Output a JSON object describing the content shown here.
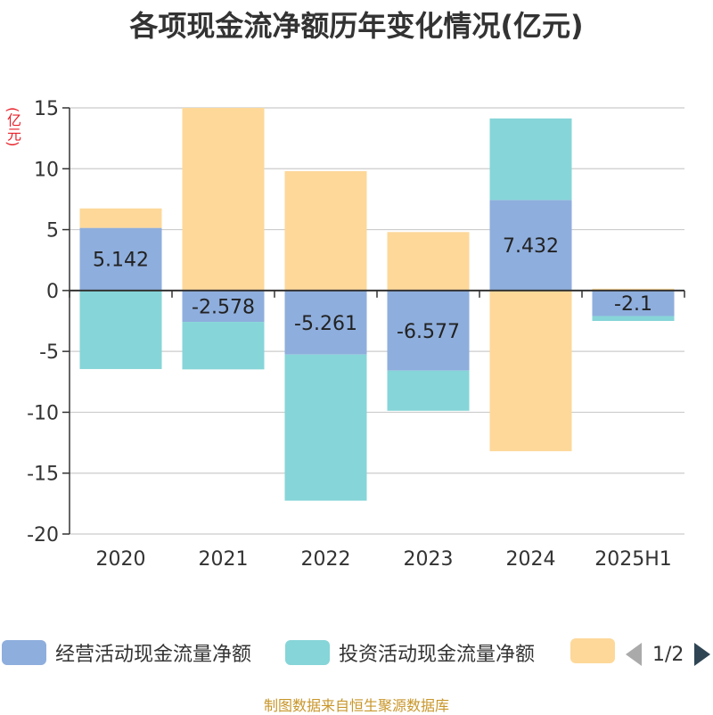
{
  "title": "各项现金流净额历年变化情况(亿元)",
  "unit_label": "(亿元)",
  "legend": {
    "items": [
      {
        "label": "经营活动现金流量净额",
        "color": "#8eaedd"
      },
      {
        "label": "投资活动现金流量净额",
        "color": "#86d5d8"
      },
      {
        "label": "",
        "color": "#fdd899"
      }
    ],
    "page": "1/2"
  },
  "footer": "制图数据来自恒生聚源数据库",
  "chart_data": {
    "type": "bar",
    "stacked": true,
    "categories": [
      "2020",
      "2021",
      "2022",
      "2023",
      "2024",
      "2025H1"
    ],
    "ylim": [
      -20,
      15
    ],
    "yticks": [
      15,
      10,
      5,
      0,
      -5,
      -10,
      -15,
      -20
    ],
    "grid": true,
    "legend_position": "bottom",
    "series": [
      {
        "name": "经营活动现金流量净额",
        "color": "#8eaedd",
        "values": [
          5.142,
          -2.578,
          -5.261,
          -6.577,
          7.432,
          -2.1
        ],
        "labels": [
          "5.142",
          "-2.578",
          "-5.261",
          "-6.577",
          "7.432",
          "-2.1"
        ]
      },
      {
        "name": "投资活动现金流量净额",
        "color": "#86d5d8",
        "values": [
          -6.45,
          -3.9,
          -12.0,
          -3.3,
          6.7,
          -0.4
        ]
      },
      {
        "color": "#fdd899",
        "values": [
          1.6,
          15.0,
          9.8,
          4.8,
          -13.2,
          0.15
        ]
      }
    ]
  }
}
